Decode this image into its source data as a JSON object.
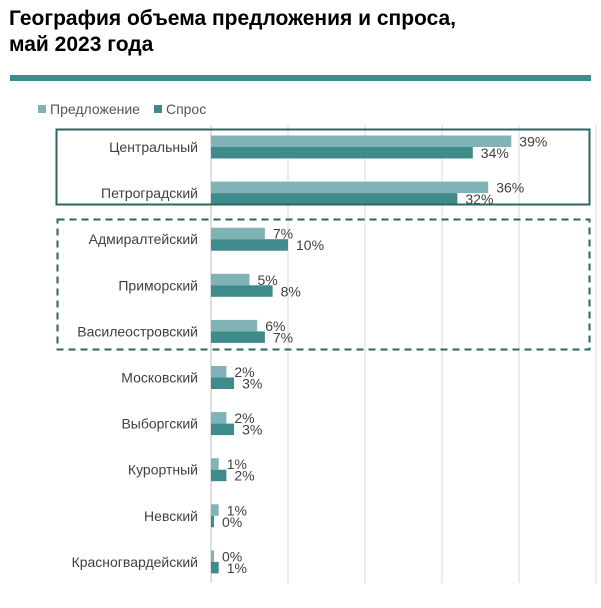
{
  "title_lines": [
    "География объема предложения и спроса,",
    "май 2023 года"
  ],
  "colors": {
    "supply": "#80b3b5",
    "demand": "#3f8a8b",
    "rule": "#3f8a8b",
    "box": "#2e6462",
    "grid": "#d9d9d9",
    "text": "#404040"
  },
  "chart_data": {
    "type": "bar",
    "orientation": "horizontal",
    "title": "География объема предложения и спроса, май 2023 года",
    "categories": [
      "Центральный",
      "Петроградский",
      "Адмиралтейский",
      "Приморский",
      "Василеостровский",
      "Московский",
      "Выборгский",
      "Курортный",
      "Невский",
      "Красногвардейский"
    ],
    "series": [
      {
        "name": "Предложение",
        "values": [
          39,
          36,
          7,
          5,
          6,
          2,
          2,
          1,
          1,
          0
        ],
        "labels": [
          "39%",
          "36%",
          "7%",
          "5%",
          "6%",
          "2%",
          "2%",
          "1%",
          "1%",
          "0%"
        ]
      },
      {
        "name": "Спрос",
        "values": [
          34,
          32,
          10,
          8,
          7,
          3,
          3,
          2,
          0,
          1
        ],
        "labels": [
          "34%",
          "32%",
          "10%",
          "8%",
          "7%",
          "3%",
          "3%",
          "2%",
          "0%",
          "1%"
        ]
      }
    ],
    "xlim": [
      0,
      50
    ],
    "grid": true,
    "legend_position": "top-left",
    "highlight_groups": [
      {
        "style": "solid",
        "categories": [
          "Центральный",
          "Петроградский"
        ]
      },
      {
        "style": "dashed",
        "categories": [
          "Адмиралтейский",
          "Приморский",
          "Василеостровский"
        ]
      }
    ]
  }
}
